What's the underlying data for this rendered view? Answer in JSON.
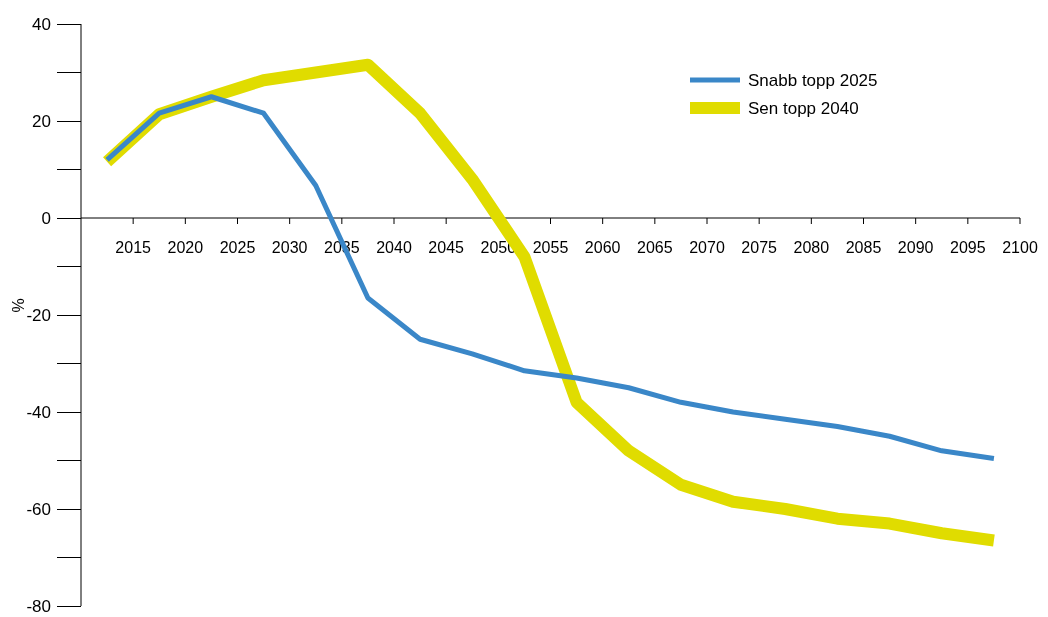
{
  "chart_data": {
    "type": "line",
    "ylabel": "%",
    "x": [
      2012.5,
      2017.5,
      2022.5,
      2027.5,
      2032.5,
      2037.5,
      2042.5,
      2047.5,
      2052.5,
      2057.5,
      2062.5,
      2067.5,
      2072.5,
      2077.5,
      2082.5,
      2087.5,
      2092.5,
      2097.5
    ],
    "series": [
      {
        "name": "Snabb topp 2025",
        "color": "#3a87c8",
        "values": [
          12,
          21.6,
          25,
          21.6,
          6.7,
          -16.5,
          -25,
          -28,
          -31.5,
          -33,
          -35,
          -38,
          -40,
          -41.5,
          -43,
          -45,
          -48,
          -49.6
        ]
      },
      {
        "name": "Sen topp 2040",
        "color": "#e0dc00",
        "values": [
          11.6,
          21.4,
          25,
          28.4,
          30,
          31.6,
          21.6,
          8,
          -8,
          -38,
          -48,
          -55,
          -58.5,
          -60,
          -62,
          -63,
          -65,
          -66.5
        ]
      }
    ],
    "xlim": [
      2010,
      2100
    ],
    "xticks": [
      2015,
      2020,
      2025,
      2030,
      2035,
      2040,
      2045,
      2050,
      2055,
      2060,
      2065,
      2070,
      2075,
      2080,
      2085,
      2090,
      2095,
      2100
    ],
    "ylim": [
      -80,
      40
    ],
    "yticks": [
      -80,
      -60,
      -40,
      -20,
      0,
      20,
      40
    ],
    "grid": false,
    "legend": "top right"
  }
}
